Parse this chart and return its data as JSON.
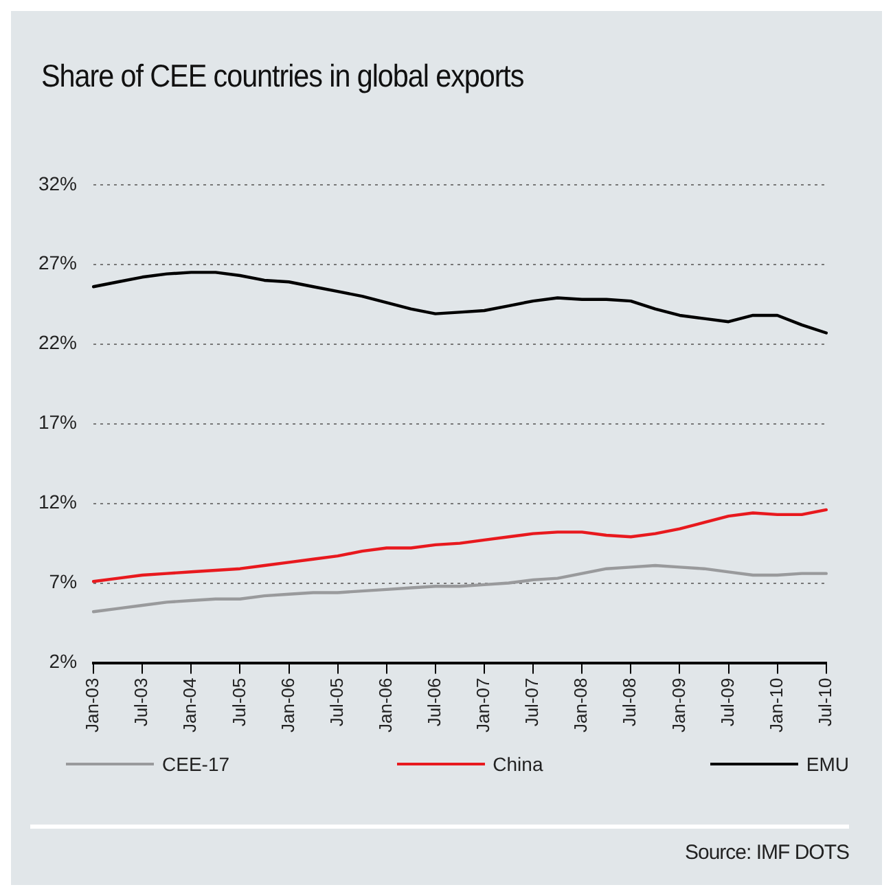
{
  "chart_data": {
    "type": "line",
    "title": "Share of CEE countries in global exports",
    "annotations": [
      "Source: IMF DOTS"
    ],
    "categories": [
      "Jan-03",
      null,
      "Jul-03",
      null,
      "Jan-04",
      null,
      "Jul-05",
      null,
      "Jan-06",
      null,
      "Jul-05",
      null,
      "Jan-06",
      null,
      "Jul-06",
      null,
      "Jan-07",
      null,
      "Jul-07",
      null,
      "Jan-08",
      null,
      "Jul-08",
      null,
      "Jan-09",
      null,
      "Jul-09",
      null,
      "Jan-10",
      null,
      "Jul-10"
    ],
    "ylim": [
      2,
      32
    ],
    "yticks": [
      {
        "value": 2,
        "label": "2%"
      },
      {
        "value": 7,
        "label": "7%"
      },
      {
        "value": 12,
        "label": "12%"
      },
      {
        "value": 17,
        "label": "17%"
      },
      {
        "value": 22,
        "label": "22%"
      },
      {
        "value": 27,
        "label": "27%"
      },
      {
        "value": 32,
        "label": "32%"
      }
    ],
    "grid": "y",
    "legend": "bottom",
    "marker": "none",
    "line_style": "solid",
    "series": [
      {
        "name": "CEE-17",
        "color": "#999a9c",
        "values": [
          5.2,
          5.4,
          5.6,
          5.8,
          5.9,
          6.0,
          6.0,
          6.2,
          6.3,
          6.4,
          6.4,
          6.5,
          6.6,
          6.7,
          6.8,
          6.8,
          6.9,
          7.0,
          7.2,
          7.3,
          7.6,
          7.9,
          8.0,
          8.1,
          8.0,
          7.9,
          7.7,
          7.5,
          7.5,
          7.6,
          7.6
        ]
      },
      {
        "name": "China",
        "color": "#e8191e",
        "values": [
          7.1,
          7.3,
          7.5,
          7.6,
          7.7,
          7.8,
          7.9,
          8.1,
          8.3,
          8.5,
          8.7,
          9.0,
          9.2,
          9.2,
          9.4,
          9.5,
          9.7,
          9.9,
          10.1,
          10.2,
          10.2,
          10.0,
          9.9,
          10.1,
          10.4,
          10.8,
          11.2,
          11.4,
          11.3,
          11.3,
          11.6
        ]
      },
      {
        "name": "EMU",
        "color": "#000000",
        "values": [
          25.6,
          25.9,
          26.2,
          26.4,
          26.5,
          26.5,
          26.3,
          26.0,
          25.9,
          25.6,
          25.3,
          25.0,
          24.6,
          24.2,
          23.9,
          24.0,
          24.1,
          24.4,
          24.7,
          24.9,
          24.8,
          24.8,
          24.7,
          24.2,
          23.8,
          23.6,
          23.4,
          23.8,
          23.8,
          23.2,
          22.7
        ]
      }
    ]
  }
}
